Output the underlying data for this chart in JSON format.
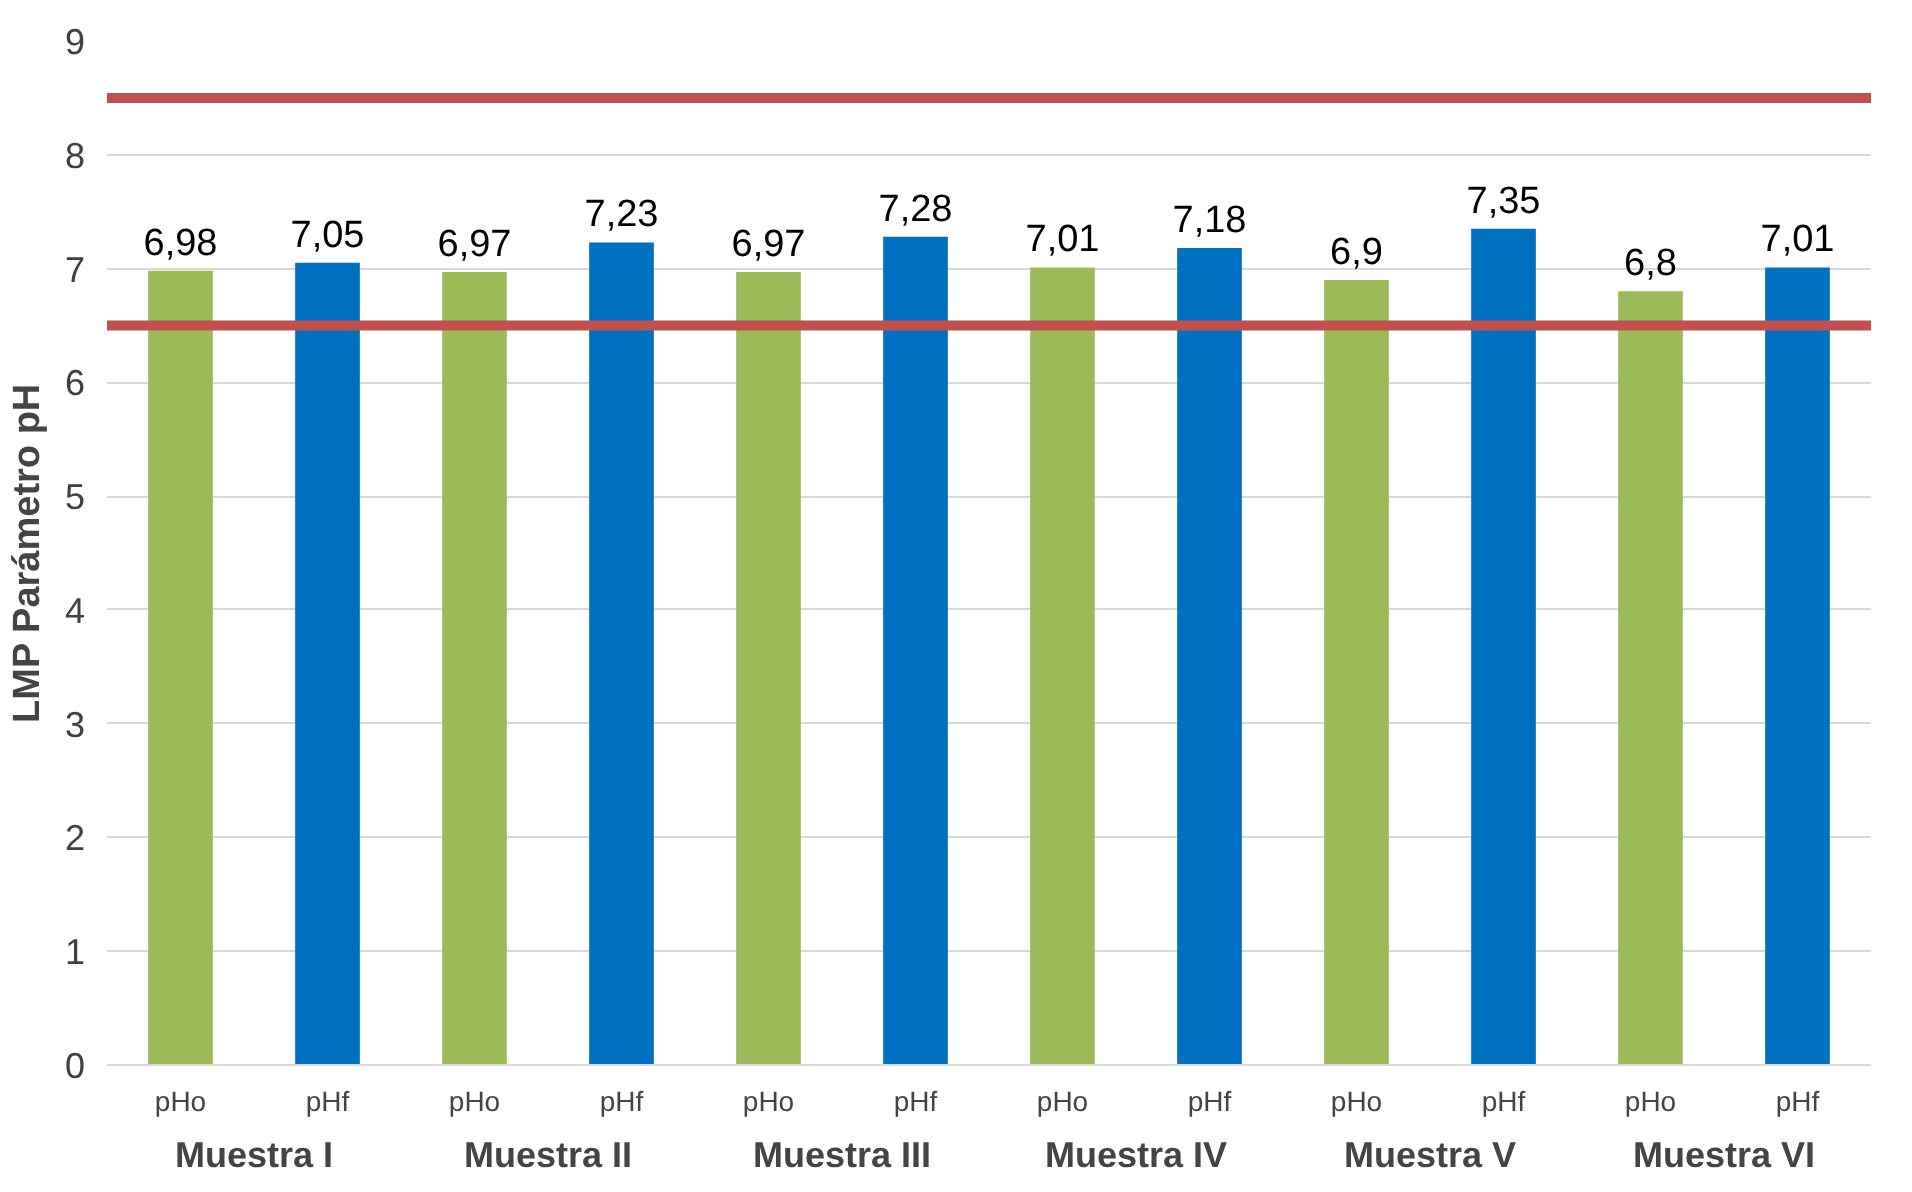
{
  "chart_data": {
    "type": "bar",
    "ylabel": "LMP Parámetro pH",
    "categories": [
      "Muestra I",
      "Muestra II",
      "Muestra III",
      "Muestra IV",
      "Muestra V",
      "Muestra VI"
    ],
    "series": [
      {
        "name": "pHo",
        "color": "#9bbb59",
        "values": [
          6.98,
          6.97,
          6.97,
          7.01,
          6.9,
          6.8
        ],
        "value_labels": [
          "6,98",
          "6,97",
          "6,97",
          "7,01",
          "6,9",
          "6,8"
        ]
      },
      {
        "name": "pHf",
        "color": "#0070c0",
        "values": [
          7.05,
          7.23,
          7.28,
          7.18,
          7.35,
          7.01
        ],
        "value_labels": [
          "7,05",
          "7,23",
          "7,28",
          "7,18",
          "7,35",
          "7,01"
        ]
      }
    ],
    "ylim": [
      0,
      9
    ],
    "yticks": [
      0,
      1,
      2,
      3,
      4,
      5,
      6,
      7,
      8,
      9
    ],
    "grid": "y",
    "ref_lines": [
      {
        "axis": "y",
        "value": 6.5,
        "color": "#c0504d"
      },
      {
        "axis": "y",
        "value": 8.5,
        "color": "#c0504d"
      }
    ]
  }
}
